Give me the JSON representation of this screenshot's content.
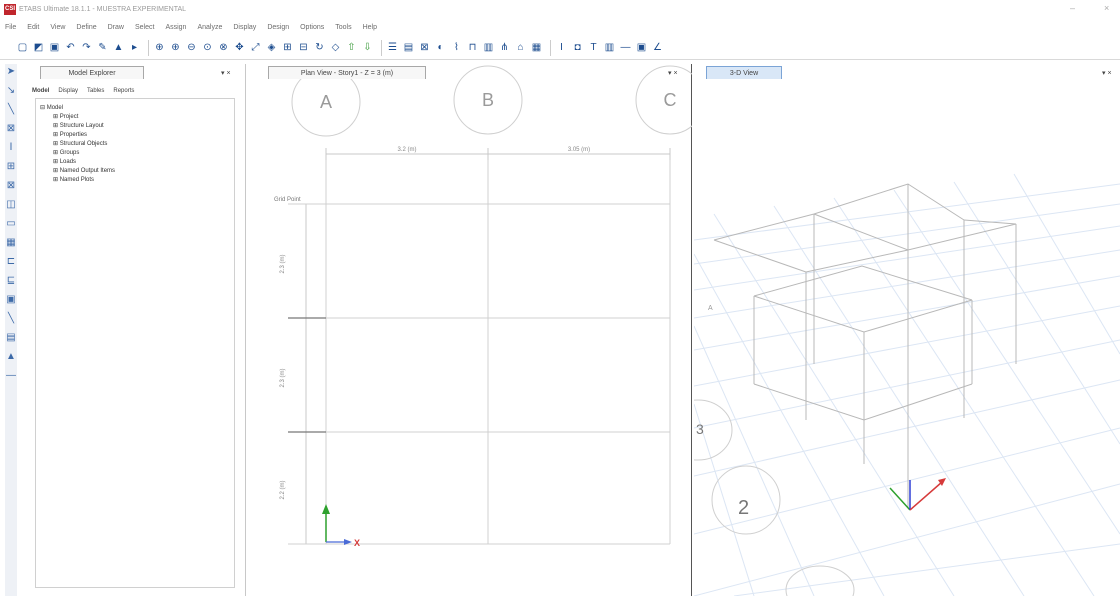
{
  "window": {
    "title": "ETABS Ultimate 18.1.1 - MUESTRA EXPERIMENTAL",
    "logo": "CSI",
    "controls": [
      "–",
      "×"
    ]
  },
  "menu": [
    "File",
    "Edit",
    "View",
    "Define",
    "Draw",
    "Select",
    "Assign",
    "Analyze",
    "Display",
    "Design",
    "Options",
    "Tools",
    "Help"
  ],
  "toolbar": {
    "icons": [
      "new-model-icon",
      "open-icon",
      "save-icon",
      "undo-icon",
      "redo-icon",
      "pencil-icon",
      "lock-icon",
      "run-icon",
      "zoom-window-icon",
      "zoom-in-icon",
      "zoom-out-icon",
      "zoom-extents-icon",
      "zoom-previous-icon",
      "pan-icon",
      "rubber-band-icon",
      "3d-view-icon",
      "plan-view-icon",
      "elevation-view-icon",
      "rotate-icon",
      "perspective-icon",
      "move-up-icon",
      "move-down-icon",
      "display-options-icon",
      "shrink-icon",
      "show-axes-icon",
      "object-fill-icon",
      "lines-icon",
      "frame-icon",
      "area-icon",
      "link-icon",
      "joint-icon",
      "select-all-icon"
    ],
    "right_labels": [
      "I",
      "T",
      "—",
      "∠"
    ]
  },
  "explorer": {
    "tab_label": "Model Explorer",
    "pin_label": "▾ ×",
    "subtabs": [
      "Model",
      "Display",
      "Tables",
      "Reports"
    ],
    "root": "Model",
    "items": [
      "Project",
      "Structure Layout",
      "Properties",
      "Structural Objects",
      "Groups",
      "Loads",
      "Named Output Items",
      "Named Plots"
    ]
  },
  "plan": {
    "tab_label": "Plan View - Story1 - Z = 3 (m)",
    "pin_label": "▾ ×",
    "bubbles": [
      "A",
      "B",
      "C"
    ],
    "dims_x": [
      "3.2 (m)",
      "3.05 (m)"
    ],
    "dims_y": [
      "2.3 (m)",
      "2.3 (m)",
      "2.2 (m)"
    ],
    "grid_point_label": "Grid Point",
    "axis_x": "X"
  },
  "view3d": {
    "tab_label": "3-D View",
    "pin_label": "▾ ×",
    "bubbles": [
      "3",
      "2"
    ],
    "axis_label": "A"
  }
}
